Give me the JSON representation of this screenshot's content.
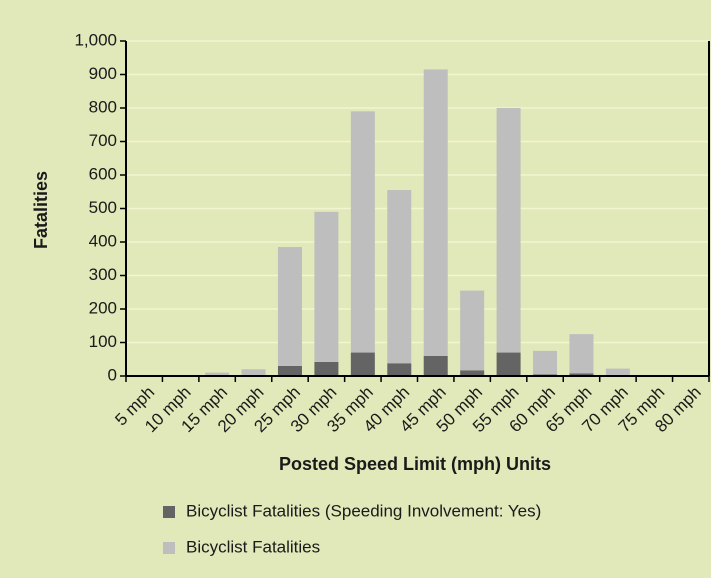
{
  "chart_data": {
    "type": "stacked_bar",
    "y_label": "Fatalities",
    "x_label": "Posted Speed Limit (mph) Units",
    "categories": [
      "5 mph",
      "10 mph",
      "15 mph",
      "20 mph",
      "25 mph",
      "30 mph",
      "35 mph",
      "40 mph",
      "45 mph",
      "50 mph",
      "55 mph",
      "60 mph",
      "65 mph",
      "70 mph",
      "75 mph",
      "80 mph"
    ],
    "series": [
      {
        "name": "Bicyclist Fatalities (Speeding Involvement: Yes)",
        "color": "#646464",
        "values": [
          0,
          0,
          1,
          2,
          30,
          42,
          70,
          38,
          60,
          17,
          70,
          5,
          8,
          1,
          0,
          0
        ]
      },
      {
        "name": "Bicyclist Fatalities",
        "color": "#bebebe",
        "values": [
          0,
          0,
          9,
          18,
          355,
          448,
          720,
          517,
          855,
          238,
          730,
          70,
          117,
          21,
          0,
          0
        ]
      }
    ],
    "ylim": [
      0,
      1000
    ],
    "yticks": [
      0,
      100,
      200,
      300,
      400,
      500,
      600,
      700,
      800,
      900,
      {
        "value": 1000,
        "label": "1,000"
      }
    ],
    "grid": true
  }
}
